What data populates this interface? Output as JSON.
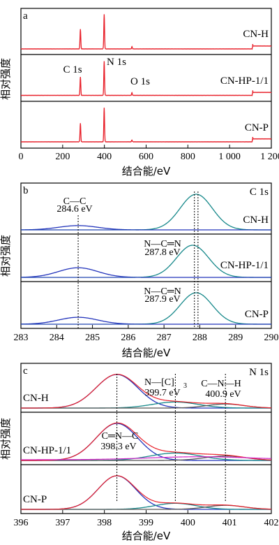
{
  "chart_data": [
    {
      "type": "line",
      "panel_label": "a",
      "xlabel": "结合能/eV",
      "ylabel": "相对强度",
      "xlim": [
        0,
        1200
      ],
      "x_ticks": [
        0,
        200,
        400,
        600,
        800,
        1000,
        1200
      ],
      "x_tick_labels": [
        "0",
        "200",
        "400",
        "600",
        "800",
        "1 000",
        "1 200"
      ],
      "series": [
        {
          "name": "CN-H",
          "color": "#e8202a",
          "peaks": [
            [
              285,
              0.55
            ],
            [
              399,
              0.95
            ],
            [
              532,
              0.06
            ]
          ]
        },
        {
          "name": "CN-HP-1/1",
          "color": "#e8202a",
          "peaks": [
            [
              285,
              0.5
            ],
            [
              399,
              0.92
            ],
            [
              532,
              0.07
            ]
          ]
        },
        {
          "name": "CN-P",
          "color": "#e8202a",
          "peaks": [
            [
              285,
              0.5
            ],
            [
              399,
              0.92
            ],
            [
              532,
              0.05
            ]
          ]
        }
      ],
      "annotations": [
        {
          "text": "C 1s",
          "x": 285
        },
        {
          "text": "N 1s",
          "x": 399
        },
        {
          "text": "O 1s",
          "x": 532
        }
      ]
    },
    {
      "type": "line",
      "panel_label": "b",
      "title": "C 1s",
      "xlabel": "结合能/eV",
      "ylabel": "相对强度",
      "xlim": [
        283,
        290
      ],
      "x_ticks": [
        283,
        284,
        285,
        286,
        287,
        288,
        289,
        290
      ],
      "series": [
        {
          "name": "CN-H",
          "components": [
            {
              "center": 284.6,
              "height": 0.12,
              "width": 0.55,
              "color": "#2233bb"
            },
            {
              "center": 287.9,
              "height": 1.0,
              "width": 0.45,
              "color": "#16888a"
            }
          ]
        },
        {
          "name": "CN-HP-1/1",
          "components": [
            {
              "center": 284.6,
              "height": 0.3,
              "width": 0.55,
              "color": "#2233bb"
            },
            {
              "center": 287.8,
              "height": 1.0,
              "width": 0.45,
              "color": "#16888a"
            }
          ]
        },
        {
          "name": "CN-P",
          "components": [
            {
              "center": 284.6,
              "height": 0.22,
              "width": 0.55,
              "color": "#2233bb"
            },
            {
              "center": 287.9,
              "height": 1.0,
              "width": 0.45,
              "color": "#16888a"
            }
          ]
        }
      ],
      "annotations": [
        {
          "text": "C—C",
          "sub": "284.6 eV",
          "x": 284.6
        },
        {
          "text": "N—C═N",
          "sub": "287.8 eV",
          "x": 287.8
        },
        {
          "text": "N—C═N",
          "sub": "287.9 eV",
          "x": 287.9
        }
      ]
    },
    {
      "type": "line",
      "panel_label": "c",
      "title": "N 1s",
      "xlabel": "结合能/eV",
      "ylabel": "相对强度",
      "xlim": [
        396,
        402
      ],
      "x_ticks": [
        396,
        397,
        398,
        399,
        400,
        401,
        402
      ],
      "series": [
        {
          "name": "CN-H",
          "components": [
            {
              "center": 398.3,
              "height": 1.0,
              "width": 0.5,
              "color": "#2233bb"
            },
            {
              "center": 399.7,
              "height": 0.18,
              "width": 0.55,
              "color": "#16888a"
            },
            {
              "center": 400.9,
              "height": 0.12,
              "width": 0.45,
              "color": "#555555"
            }
          ]
        },
        {
          "name": "CN-HP-1/1",
          "components": [
            {
              "center": 398.3,
              "height": 1.0,
              "width": 0.5,
              "color": "#2233bb"
            },
            {
              "center": 399.7,
              "height": 0.2,
              "width": 0.6,
              "color": "#16888a"
            },
            {
              "center": 400.9,
              "height": 0.12,
              "width": 0.5,
              "color": "#555555"
            }
          ]
        },
        {
          "name": "CN-P",
          "components": [
            {
              "center": 398.3,
              "height": 1.0,
              "width": 0.45,
              "color": "#2233bb"
            },
            {
              "center": 399.7,
              "height": 0.18,
              "width": 0.5,
              "color": "#16888a"
            },
            {
              "center": 400.9,
              "height": 0.12,
              "width": 0.45,
              "color": "#555555"
            }
          ]
        }
      ],
      "annotations": [
        {
          "text": "C═N—C",
          "sub": "398.3 eV",
          "x": 398.3
        },
        {
          "text": "N—[C]",
          "subscript": "3",
          "sub": "399.7 eV",
          "x": 399.7
        },
        {
          "text": "C—N—H",
          "sub": "400.9 eV",
          "x": 400.9
        }
      ]
    }
  ]
}
